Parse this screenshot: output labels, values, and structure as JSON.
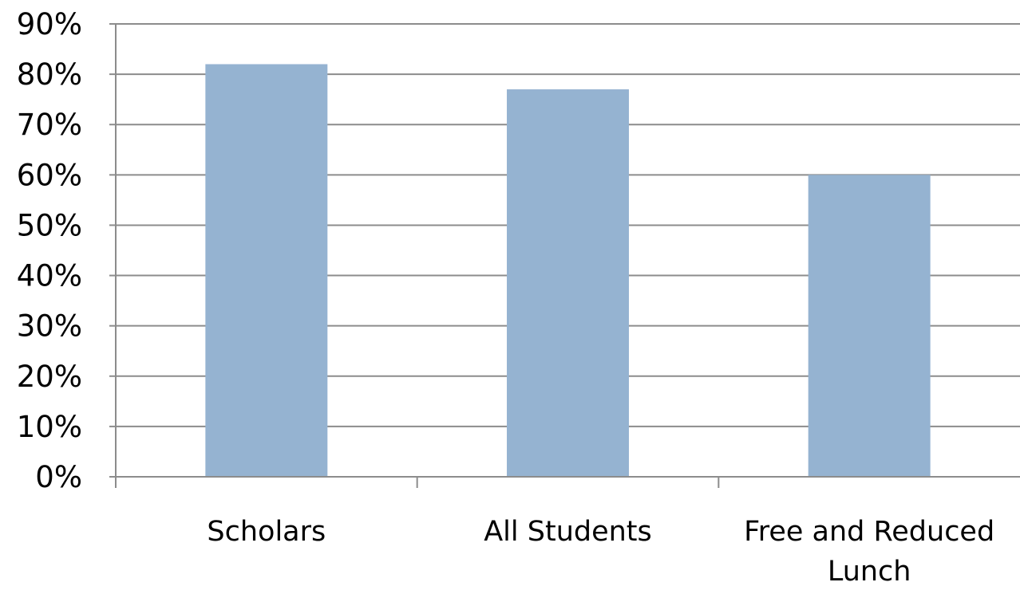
{
  "chart_data": {
    "type": "bar",
    "title": "",
    "xlabel": "",
    "ylabel": "",
    "categories": [
      "Scholars",
      "All Students",
      "Free and Reduced Lunch"
    ],
    "category_lines": [
      [
        "Scholars"
      ],
      [
        "All Students"
      ],
      [
        "Free and Reduced",
        "Lunch"
      ]
    ],
    "values": [
      82,
      77,
      60
    ],
    "ylim": [
      0,
      90
    ],
    "y_ticks": [
      0,
      10,
      20,
      30,
      40,
      50,
      60,
      70,
      80,
      90
    ],
    "y_tick_labels": [
      "0%",
      "10%",
      "20%",
      "30%",
      "40%",
      "50%",
      "60%",
      "70%",
      "80%",
      "90%"
    ],
    "grid": true,
    "legend": "none",
    "colors": {
      "bar": "#95b3d1",
      "grid": "#8c8c8c",
      "axis": "#8c8c8c",
      "text": "#000000"
    }
  }
}
